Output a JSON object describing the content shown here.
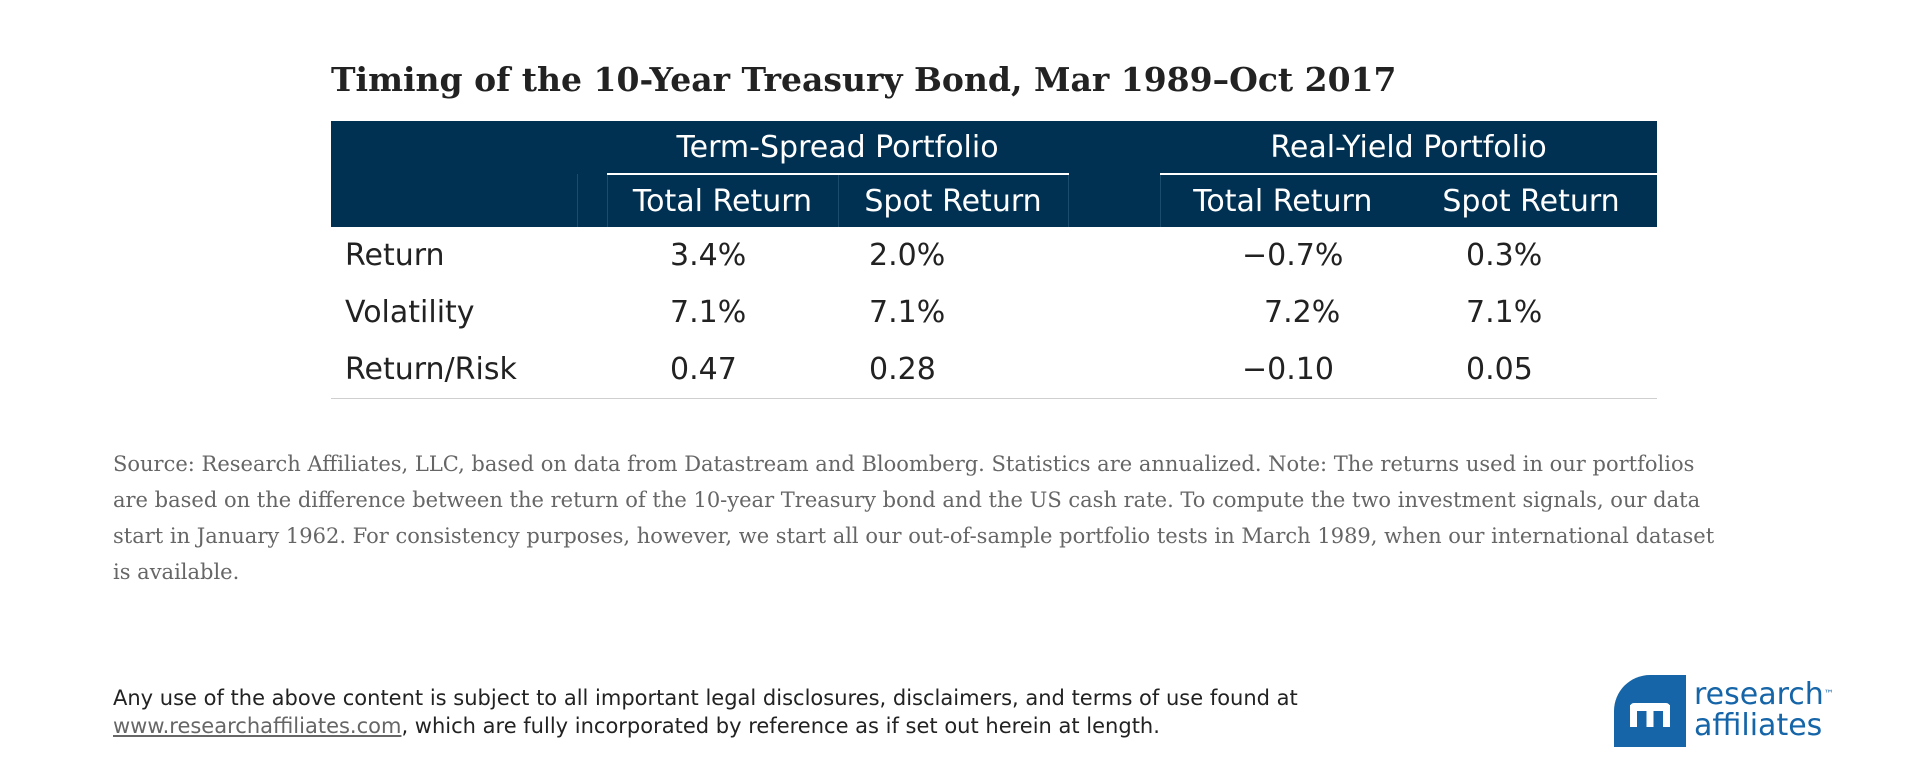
{
  "title": "Timing of the 10-Year Treasury Bond, Mar 1989–Oct 2017",
  "table": {
    "groups": [
      "Term-Spread Portfolio",
      "Real-Yield Portfolio"
    ],
    "subheaders": [
      "Total Return",
      "Spot Return",
      "Total Return",
      "Spot Return"
    ],
    "rows": [
      {
        "label": "Return",
        "values": [
          "3.4%",
          "2.0%",
          "−0.7%",
          "0.3%"
        ]
      },
      {
        "label": "Volatility",
        "values": [
          "7.1%",
          "7.1%",
          "7.2%",
          "7.1%"
        ]
      },
      {
        "label": "Return/Risk",
        "values": [
          "0.47",
          "0.28",
          "−0.10",
          "0.05"
        ]
      }
    ]
  },
  "source": "Source: Research Affiliates, LLC, based on data from Datastream and Bloomberg. Statistics are annualized. Note: The returns used in our portfolios are based on the difference between the return of the 10-year Treasury bond and the US cash rate. To compute the two investment signals, our data start in January 1962. For consistency purposes, however, we start all our out-of-sample portfolio tests in March 1989, when our international dataset is available.",
  "legal": {
    "text_before": "Any use of the above content is subject to all important legal disclosures, disclaimers, and terms of use found at",
    "link": "www.researchaffiliates.com",
    "text_after": ", which are fully incorporated by reference as if set out herein at length."
  },
  "logo": {
    "line1": "research",
    "tm": "™",
    "line2": "affiliates",
    "color": "#1565a8"
  },
  "colors": {
    "header_bg": "#013152",
    "header_text": "#ffffff"
  }
}
